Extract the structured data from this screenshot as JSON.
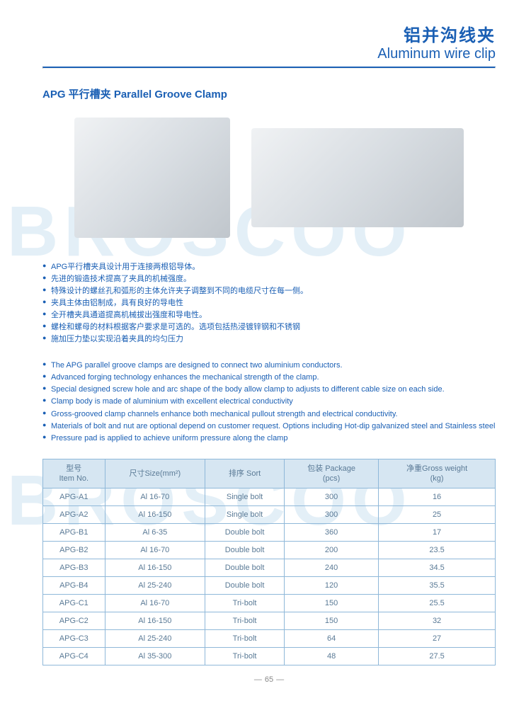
{
  "colors": {
    "brand": "#1a5fb4",
    "rule": "#1a5fb4",
    "table_border": "#8fb8d9",
    "table_header_bg": "#d6e6f2",
    "table_text": "#5a7a96",
    "bullet_color": "#1a5fb4",
    "watermark": "#e3eff7"
  },
  "header": {
    "title_cn": "铝并沟线夹",
    "title_en": "Aluminum wire clip"
  },
  "subtitle": "APG 平行槽夹  Parallel Groove Clamp",
  "watermark_text": "BROSCOO",
  "bullets_cn": [
    "APG平行槽夹具设计用于连接两根铝导体。",
    "先进的锻造技术提高了夹具的机械强度。",
    "特殊设计的螺丝孔和弧形的主体允许夹子调整到不同的电缆尺寸在每一侧。",
    "夹具主体由铝制成，具有良好的导电性",
    "全开槽夹具通道提高机械拔出强度和导电性。",
    "螺栓和螺母的材料根据客户要求是可选的。选项包括热浸镀锌钢和不锈钢",
    "施加压力垫以实现沿着夹具的均匀压力"
  ],
  "bullets_en": [
    "The APG parallel groove clamps are designed to connect two aluminium conductors.",
    "Advanced forging technology enhances the mechanical strength of the clamp.",
    "Special designed screw hole and arc shape of the body allow clamp to adjusts to different cable size on each side.",
    "Clamp body is made of aluminium with excellent electrical conductivity",
    "Gross-grooved clamp channels enhance both mechanical pullout strength and electrical conductivity.",
    "Materials of bolt and nut are optional depend on customer request. Options including Hot-dip galvanized steel and Stainless steel",
    "Pressure pad is applied to achieve uniform pressure along the clamp"
  ],
  "table": {
    "columns": [
      "型号\nItem No.",
      "尺寸Size(mm²)",
      "排序 Sort",
      "包装 Package\n(pcs)",
      "净重Gross weight\n(kg)"
    ],
    "rows": [
      [
        "APG-A1",
        "Al 16-70",
        "Single bolt",
        "300",
        "16"
      ],
      [
        "APG-A2",
        "Al 16-150",
        "Single bolt",
        "300",
        "25"
      ],
      [
        "APG-B1",
        "Al 6-35",
        "Double bolt",
        "360",
        "17"
      ],
      [
        "APG-B2",
        "Al 16-70",
        "Double bolt",
        "200",
        "23.5"
      ],
      [
        "APG-B3",
        "Al 16-150",
        "Double bolt",
        "240",
        "34.5"
      ],
      [
        "APG-B4",
        "Al 25-240",
        "Double bolt",
        "120",
        "35.5"
      ],
      [
        "APG-C1",
        "Al 16-70",
        "Tri-bolt",
        "150",
        "25.5"
      ],
      [
        "APG-C2",
        "Al 16-150",
        "Tri-bolt",
        "150",
        "32"
      ],
      [
        "APG-C3",
        "Al 25-240",
        "Tri-bolt",
        "64",
        "27"
      ],
      [
        "APG-C4",
        "Al 35-300",
        "Tri-bolt",
        "48",
        "27.5"
      ]
    ]
  },
  "page_number": "65"
}
